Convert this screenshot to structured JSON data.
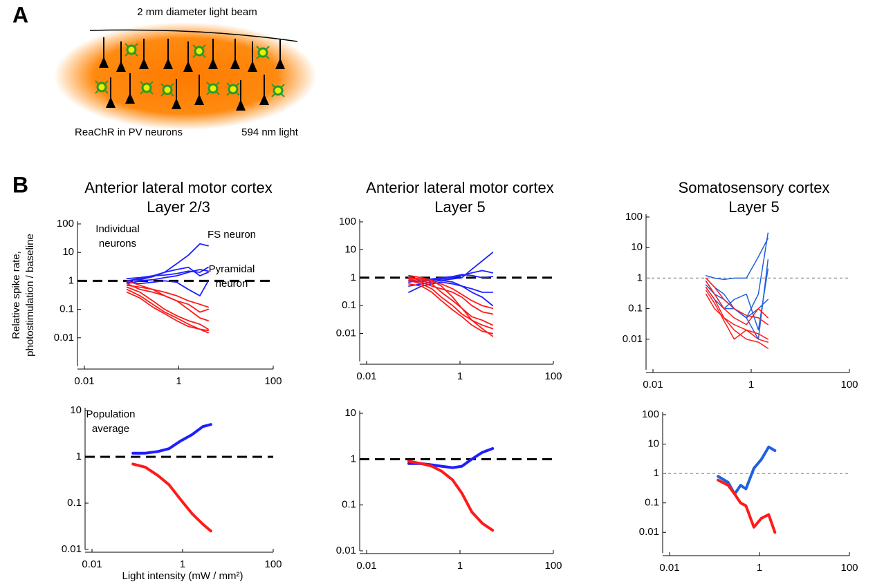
{
  "panel_a": {
    "label": "A",
    "beam_label": "2 mm diameter light beam",
    "cell_label": "ReaChR in PV neurons",
    "light_label": "594 nm light",
    "light_color": "#f08000"
  },
  "panel_b": {
    "label": "B"
  },
  "chart_data": [
    {
      "type": "line",
      "title": "Anterior lateral motor cortex",
      "subtitle": "Layer 2/3",
      "ylabel": [
        "Relative spike rate,",
        "photostimulation / baseline"
      ],
      "x": [
        0.08,
        0.15,
        0.28,
        0.5,
        0.9,
        1.6,
        2.8,
        4.2
      ],
      "xlim": [
        0.01,
        100
      ],
      "xticks": [
        0.01,
        1,
        100
      ],
      "ylim": [
        0.001,
        100
      ],
      "yticks": [
        0.01,
        0.1,
        1,
        10,
        100
      ],
      "log_x": true,
      "log_y": true,
      "refline": 1,
      "refline_color": "#000",
      "refline_width": 3,
      "line_width": 1.8,
      "annotations": [
        {
          "lines": [
            "Individual",
            "neurons"
          ],
          "color": "#000"
        },
        {
          "lines": [
            "FS neuron"
          ],
          "color": "#1f1fff"
        },
        {
          "lines": [
            "Pyramidal",
            "neuron"
          ],
          "color": "#ff1a1a"
        }
      ],
      "series": [
        {
          "color": "#1f1fff",
          "values": [
            1,
            1.2,
            1.5,
            2,
            4,
            8,
            20,
            17
          ]
        },
        {
          "color": "#1f1fff",
          "values": [
            0.8,
            1,
            1.1,
            1.3,
            1.5,
            2,
            2.5,
            2.2
          ]
        },
        {
          "color": "#1f1fff",
          "values": [
            1.2,
            1.3,
            1.5,
            1.6,
            1.8,
            2.2,
            2,
            3
          ]
        },
        {
          "color": "#1f1fff",
          "values": [
            0.9,
            0.8,
            0.9,
            1,
            0.9,
            0.5,
            0.3,
            1
          ]
        },
        {
          "color": "#1f1fff",
          "values": [
            1,
            1.1,
            1.4,
            2,
            2.5,
            3,
            1.5,
            2
          ]
        },
        {
          "color": "#ff1a1a",
          "values": [
            0.8,
            0.5,
            0.4,
            0.3,
            0.2,
            0.1,
            0.05,
            0.04
          ]
        },
        {
          "color": "#ff1a1a",
          "values": [
            0.6,
            0.4,
            0.2,
            0.1,
            0.06,
            0.04,
            0.03,
            0.02
          ]
        },
        {
          "color": "#ff1a1a",
          "values": [
            1,
            0.7,
            0.5,
            0.3,
            0.2,
            0.15,
            0.08,
            0.1
          ]
        },
        {
          "color": "#ff1a1a",
          "values": [
            0.5,
            0.3,
            0.15,
            0.08,
            0.05,
            0.03,
            0.02,
            0.015
          ]
        },
        {
          "color": "#ff1a1a",
          "values": [
            0.7,
            0.6,
            0.5,
            0.4,
            0.3,
            0.2,
            0.15,
            0.12
          ]
        },
        {
          "color": "#ff1a1a",
          "values": [
            0.4,
            0.25,
            0.12,
            0.07,
            0.04,
            0.025,
            0.02,
            0.018
          ]
        }
      ]
    },
    {
      "type": "line",
      "title": "Anterior lateral motor cortex",
      "subtitle": "Layer 5",
      "x": [
        0.08,
        0.15,
        0.25,
        0.4,
        0.7,
        1.1,
        1.8,
        3,
        5
      ],
      "xlim": [
        0.01,
        100
      ],
      "xticks": [
        0.01,
        1,
        100
      ],
      "ylim": [
        0.001,
        100
      ],
      "yticks": [
        0.01,
        0.1,
        1,
        10,
        100
      ],
      "log_x": true,
      "log_y": true,
      "refline": 1,
      "refline_color": "#000",
      "refline_width": 3,
      "line_width": 1.8,
      "series": [
        {
          "color": "#1f1fff",
          "values": [
            0.5,
            0.6,
            0.7,
            0.8,
            0.9,
            1,
            2,
            4,
            8
          ]
        },
        {
          "color": "#1f1fff",
          "values": [
            0.8,
            0.7,
            0.9,
            0.8,
            0.7,
            0.5,
            0.3,
            0.2,
            0.1
          ]
        },
        {
          "color": "#1f1fff",
          "values": [
            1,
            0.9,
            0.8,
            0.9,
            1,
            1.2,
            1.5,
            1.8,
            1.5
          ]
        },
        {
          "color": "#1f1fff",
          "values": [
            0.3,
            0.5,
            0.6,
            0.7,
            0.6,
            0.5,
            0.4,
            0.3,
            0.3
          ]
        },
        {
          "color": "#1f1fff",
          "values": [
            0.7,
            0.8,
            0.9,
            1,
            1.1,
            1.3,
            1.2,
            1,
            1.1
          ]
        },
        {
          "color": "#ff1a1a",
          "values": [
            1,
            0.8,
            0.6,
            0.3,
            0.15,
            0.08,
            0.04,
            0.03,
            0.02
          ]
        },
        {
          "color": "#ff1a1a",
          "values": [
            0.9,
            0.7,
            0.5,
            0.4,
            0.3,
            0.2,
            0.1,
            0.06,
            0.05
          ]
        },
        {
          "color": "#ff1a1a",
          "values": [
            1.2,
            1,
            0.8,
            0.5,
            0.2,
            0.08,
            0.03,
            0.015,
            0.008
          ]
        },
        {
          "color": "#ff1a1a",
          "values": [
            0.8,
            0.6,
            0.4,
            0.2,
            0.1,
            0.05,
            0.03,
            0.02,
            0.015
          ]
        },
        {
          "color": "#ff1a1a",
          "values": [
            0.6,
            0.5,
            0.3,
            0.15,
            0.07,
            0.04,
            0.02,
            0.012,
            0.01
          ]
        },
        {
          "color": "#ff1a1a",
          "values": [
            1,
            0.9,
            0.7,
            0.6,
            0.4,
            0.25,
            0.15,
            0.1,
            0.08
          ]
        }
      ]
    },
    {
      "type": "line",
      "title": "Somatosensory cortex",
      "subtitle": "Layer 5",
      "x": [
        0.12,
        0.18,
        0.28,
        0.45,
        0.8,
        1.4,
        2.2
      ],
      "xlim": [
        0.01,
        100
      ],
      "xticks": [
        0.01,
        1,
        100
      ],
      "ylim": [
        0.001,
        100
      ],
      "yticks": [
        0.01,
        0.1,
        1,
        10,
        100
      ],
      "log_x": true,
      "log_y": true,
      "refline": 1,
      "refline_color": "#888",
      "refline_width": 1.2,
      "line_width": 1.5,
      "series": [
        {
          "color": "#2060e0",
          "values": [
            1,
            0.5,
            0.3,
            0.1,
            0.05,
            0.1,
            0.2
          ]
        },
        {
          "color": "#2060e0",
          "values": [
            0.8,
            0.3,
            0.1,
            0.1,
            0.05,
            0.3,
            30
          ]
        },
        {
          "color": "#2060e0",
          "values": [
            0.6,
            0.3,
            0.2,
            0.1,
            0.05,
            0.01,
            4
          ]
        },
        {
          "color": "#2060e0",
          "values": [
            1.2,
            1,
            0.9,
            1,
            1,
            5,
            20
          ]
        },
        {
          "color": "#2060e0",
          "values": [
            0.5,
            0.2,
            0.1,
            0.2,
            0.3,
            0.02,
            2
          ]
        },
        {
          "color": "#ff1a1a",
          "values": [
            0.5,
            0.2,
            0.05,
            0.03,
            0.02,
            0.015,
            0.01
          ]
        },
        {
          "color": "#ff1a1a",
          "values": [
            0.8,
            0.3,
            0.1,
            0.05,
            0.03,
            0.1,
            0.05
          ]
        },
        {
          "color": "#ff1a1a",
          "values": [
            0.3,
            0.1,
            0.05,
            0.02,
            0.01,
            0.008,
            0.005
          ]
        },
        {
          "color": "#ff1a1a",
          "values": [
            1,
            0.5,
            0.2,
            0.1,
            0.06,
            0.05,
            0.03
          ]
        },
        {
          "color": "#ff1a1a",
          "values": [
            0.4,
            0.15,
            0.04,
            0.01,
            0.02,
            0.01,
            0.008
          ]
        }
      ]
    },
    {
      "type": "line",
      "xlabel": "Light intensity (mW / mm²)",
      "x": [
        0.08,
        0.15,
        0.28,
        0.5,
        0.9,
        1.6,
        2.8,
        4.2
      ],
      "xlim": [
        0.01,
        100
      ],
      "xticks": [
        0.01,
        1,
        100
      ],
      "ylim": [
        0.01,
        10
      ],
      "yticks": [
        0.01,
        0.1,
        1,
        10
      ],
      "log_x": true,
      "log_y": true,
      "refline": 1,
      "refline_color": "#000",
      "refline_width": 3,
      "line_width": 4,
      "annotations": [
        {
          "lines": [
            "Population",
            "average"
          ],
          "color": "#000"
        }
      ],
      "series": [
        {
          "color": "#1f1fff",
          "values": [
            1.2,
            1.2,
            1.3,
            1.5,
            2.2,
            3,
            4.5,
            5
          ]
        },
        {
          "color": "#ff1a1a",
          "values": [
            0.7,
            0.6,
            0.4,
            0.25,
            0.12,
            0.06,
            0.035,
            0.025
          ]
        }
      ]
    },
    {
      "type": "line",
      "x": [
        0.08,
        0.15,
        0.25,
        0.4,
        0.7,
        1.1,
        1.8,
        3,
        5
      ],
      "xlim": [
        0.01,
        100
      ],
      "xticks": [
        0.01,
        1,
        100
      ],
      "ylim": [
        0.01,
        10
      ],
      "yticks": [
        0.01,
        0.1,
        1,
        10
      ],
      "log_x": true,
      "log_y": true,
      "refline": 1,
      "refline_color": "#000",
      "refline_width": 3,
      "line_width": 4,
      "series": [
        {
          "color": "#1f1fff",
          "values": [
            0.8,
            0.8,
            0.75,
            0.7,
            0.65,
            0.7,
            1,
            1.4,
            1.7
          ]
        },
        {
          "color": "#ff1a1a",
          "values": [
            0.9,
            0.8,
            0.7,
            0.55,
            0.35,
            0.18,
            0.07,
            0.04,
            0.028
          ]
        }
      ]
    },
    {
      "type": "line",
      "x": [
        0.12,
        0.2,
        0.28,
        0.38,
        0.5,
        0.75,
        1.1,
        1.6,
        2.2
      ],
      "xlim": [
        0.01,
        100
      ],
      "xticks": [
        0.01,
        1,
        100
      ],
      "ylim": [
        0.002,
        100
      ],
      "yticks": [
        0.01,
        0.1,
        1,
        10,
        100
      ],
      "log_x": true,
      "log_y": true,
      "refline": 1,
      "refline_color": "#888",
      "refline_width": 1.2,
      "line_width": 4,
      "series": [
        {
          "color": "#2060e0",
          "values": [
            0.8,
            0.5,
            0.2,
            0.4,
            0.3,
            1.5,
            3,
            8,
            6
          ]
        },
        {
          "color": "#ff1a1a",
          "values": [
            0.6,
            0.4,
            0.2,
            0.1,
            0.08,
            0.015,
            0.03,
            0.04,
            0.01
          ]
        }
      ]
    }
  ]
}
